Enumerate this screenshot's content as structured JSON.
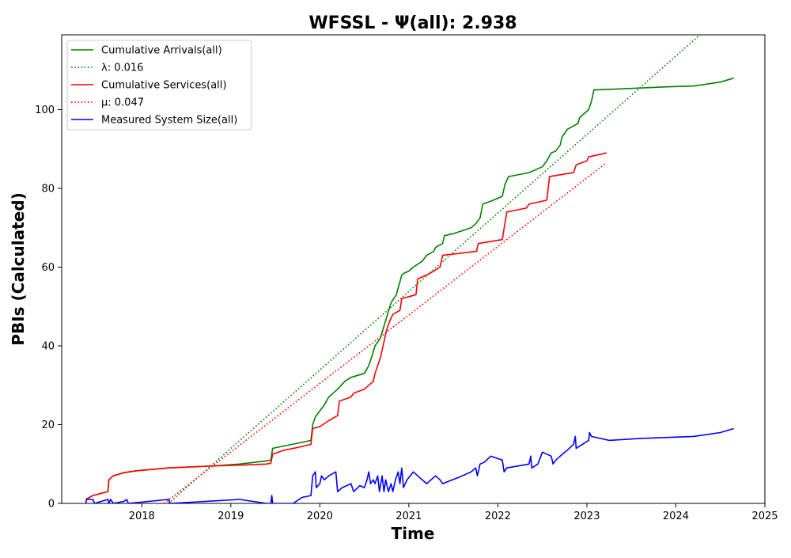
{
  "chart_data": {
    "type": "line",
    "title": "WFSSL -  Ψ(all): 2.938",
    "xlabel": "Time",
    "ylabel": "PBIs (Calculated)",
    "xlim": [
      2017.1,
      2025.0
    ],
    "ylim": [
      0,
      119
    ],
    "xticks": [
      2018,
      2019,
      2020,
      2021,
      2022,
      2023,
      2024,
      2025
    ],
    "yticks": [
      0,
      20,
      40,
      60,
      80,
      100
    ],
    "legend_position": "upper-left",
    "series": [
      {
        "name": "Cumulative Arrivals(all)",
        "color": "#008000",
        "style": "solid",
        "points": [
          [
            2017.37,
            1
          ],
          [
            2017.45,
            2
          ],
          [
            2017.62,
            3
          ],
          [
            2017.63,
            6
          ],
          [
            2017.68,
            7
          ],
          [
            2017.8,
            7.8
          ],
          [
            2017.95,
            8.3
          ],
          [
            2018.3,
            9
          ],
          [
            2018.8,
            9.5
          ],
          [
            2019.1,
            10
          ],
          [
            2019.4,
            10.8
          ],
          [
            2019.45,
            11
          ],
          [
            2019.47,
            14
          ],
          [
            2019.8,
            15.5
          ],
          [
            2019.9,
            16
          ],
          [
            2019.92,
            20
          ],
          [
            2019.95,
            22
          ],
          [
            2020.0,
            23.5
          ],
          [
            2020.05,
            25
          ],
          [
            2020.1,
            27
          ],
          [
            2020.2,
            29
          ],
          [
            2020.28,
            31
          ],
          [
            2020.35,
            32
          ],
          [
            2020.5,
            33
          ],
          [
            2020.55,
            35
          ],
          [
            2020.58,
            37
          ],
          [
            2020.62,
            40
          ],
          [
            2020.68,
            42
          ],
          [
            2020.72,
            45
          ],
          [
            2020.76,
            48
          ],
          [
            2020.8,
            51
          ],
          [
            2020.86,
            53
          ],
          [
            2020.92,
            58
          ],
          [
            2020.95,
            58.5
          ],
          [
            2021.0,
            59
          ],
          [
            2021.05,
            60
          ],
          [
            2021.15,
            61.5
          ],
          [
            2021.2,
            63
          ],
          [
            2021.28,
            64
          ],
          [
            2021.3,
            65
          ],
          [
            2021.38,
            66
          ],
          [
            2021.4,
            68
          ],
          [
            2021.5,
            68.5
          ],
          [
            2021.7,
            70
          ],
          [
            2021.75,
            71
          ],
          [
            2021.8,
            72.5
          ],
          [
            2021.83,
            76
          ],
          [
            2021.95,
            77
          ],
          [
            2022.05,
            78
          ],
          [
            2022.08,
            81
          ],
          [
            2022.12,
            83
          ],
          [
            2022.35,
            84
          ],
          [
            2022.5,
            85.5
          ],
          [
            2022.55,
            87
          ],
          [
            2022.6,
            89
          ],
          [
            2022.65,
            89.5
          ],
          [
            2022.7,
            91
          ],
          [
            2022.72,
            93
          ],
          [
            2022.78,
            95
          ],
          [
            2022.9,
            96.5
          ],
          [
            2022.92,
            98
          ],
          [
            2023.02,
            100
          ],
          [
            2023.05,
            102
          ],
          [
            2023.08,
            105
          ],
          [
            2023.3,
            105.2
          ],
          [
            2023.6,
            105.5
          ],
          [
            2023.9,
            105.8
          ],
          [
            2024.2,
            106
          ],
          [
            2024.5,
            107
          ],
          [
            2024.65,
            108
          ]
        ]
      },
      {
        "name": "λ: 0.016",
        "color": "#008000",
        "style": "dotted",
        "points": [
          [
            2018.3,
            0
          ],
          [
            2024.27,
            119
          ]
        ]
      },
      {
        "name": "Cumulative Services(all)",
        "color": "#ff0000",
        "style": "solid",
        "points": [
          [
            2017.37,
            1
          ],
          [
            2017.45,
            2
          ],
          [
            2017.62,
            3
          ],
          [
            2017.63,
            6
          ],
          [
            2017.68,
            7
          ],
          [
            2017.8,
            7.8
          ],
          [
            2017.95,
            8.3
          ],
          [
            2018.3,
            9
          ],
          [
            2018.8,
            9.5
          ],
          [
            2019.1,
            9.7
          ],
          [
            2019.4,
            10
          ],
          [
            2019.45,
            10.2
          ],
          [
            2019.47,
            12.5
          ],
          [
            2019.6,
            13.5
          ],
          [
            2019.75,
            14.2
          ],
          [
            2019.9,
            15
          ],
          [
            2019.92,
            19
          ],
          [
            2020.0,
            19.5
          ],
          [
            2020.1,
            21
          ],
          [
            2020.2,
            22.3
          ],
          [
            2020.22,
            26
          ],
          [
            2020.35,
            27
          ],
          [
            2020.38,
            28
          ],
          [
            2020.5,
            29
          ],
          [
            2020.55,
            30
          ],
          [
            2020.6,
            31
          ],
          [
            2020.62,
            33
          ],
          [
            2020.65,
            35
          ],
          [
            2020.68,
            37
          ],
          [
            2020.72,
            41
          ],
          [
            2020.75,
            44
          ],
          [
            2020.78,
            46
          ],
          [
            2020.82,
            48
          ],
          [
            2020.9,
            49
          ],
          [
            2020.92,
            52
          ],
          [
            2021.08,
            53
          ],
          [
            2021.1,
            57
          ],
          [
            2021.2,
            58
          ],
          [
            2021.28,
            59
          ],
          [
            2021.35,
            60
          ],
          [
            2021.38,
            63
          ],
          [
            2021.76,
            64
          ],
          [
            2021.78,
            66
          ],
          [
            2022.05,
            67
          ],
          [
            2022.1,
            74
          ],
          [
            2022.32,
            75
          ],
          [
            2022.35,
            76
          ],
          [
            2022.55,
            77
          ],
          [
            2022.58,
            83
          ],
          [
            2022.85,
            84
          ],
          [
            2022.88,
            86
          ],
          [
            2023.0,
            87
          ],
          [
            2023.02,
            88
          ],
          [
            2023.22,
            89
          ]
        ]
      },
      {
        "name": "μ: 0.047",
        "color": "#ff0000",
        "style": "dotted",
        "points": [
          [
            2018.25,
            0
          ],
          [
            2023.22,
            86.5
          ]
        ]
      },
      {
        "name": "Measured System Size(all)",
        "color": "#0000ff",
        "style": "solid",
        "points": [
          [
            2017.37,
            0
          ],
          [
            2017.38,
            1
          ],
          [
            2017.45,
            1
          ],
          [
            2017.47,
            0
          ],
          [
            2017.62,
            1
          ],
          [
            2017.63,
            0
          ],
          [
            2017.65,
            1
          ],
          [
            2017.68,
            0
          ],
          [
            2017.8,
            0.5
          ],
          [
            2017.83,
            1
          ],
          [
            2017.85,
            0
          ],
          [
            2018.3,
            1
          ],
          [
            2018.32,
            0
          ],
          [
            2019.1,
            1
          ],
          [
            2019.4,
            0
          ],
          [
            2019.45,
            0
          ],
          [
            2019.46,
            2
          ],
          [
            2019.47,
            0
          ],
          [
            2019.7,
            0
          ],
          [
            2019.8,
            1.5
          ],
          [
            2019.9,
            2
          ],
          [
            2019.92,
            7
          ],
          [
            2019.95,
            8
          ],
          [
            2019.96,
            4
          ],
          [
            2020.0,
            5
          ],
          [
            2020.02,
            7
          ],
          [
            2020.05,
            6
          ],
          [
            2020.1,
            7
          ],
          [
            2020.18,
            8
          ],
          [
            2020.2,
            3
          ],
          [
            2020.25,
            4
          ],
          [
            2020.35,
            5
          ],
          [
            2020.38,
            3
          ],
          [
            2020.45,
            4.5
          ],
          [
            2020.5,
            4
          ],
          [
            2020.53,
            6
          ],
          [
            2020.55,
            8
          ],
          [
            2020.57,
            5
          ],
          [
            2020.6,
            6
          ],
          [
            2020.62,
            5
          ],
          [
            2020.65,
            7
          ],
          [
            2020.67,
            3
          ],
          [
            2020.7,
            7
          ],
          [
            2020.72,
            3
          ],
          [
            2020.74,
            6
          ],
          [
            2020.77,
            3
          ],
          [
            2020.8,
            5
          ],
          [
            2020.82,
            3
          ],
          [
            2020.85,
            6
          ],
          [
            2020.88,
            8
          ],
          [
            2020.9,
            5
          ],
          [
            2020.92,
            9
          ],
          [
            2020.94,
            4
          ],
          [
            2020.98,
            6
          ],
          [
            2021.05,
            8
          ],
          [
            2021.1,
            7
          ],
          [
            2021.2,
            5
          ],
          [
            2021.25,
            6
          ],
          [
            2021.3,
            7
          ],
          [
            2021.35,
            6
          ],
          [
            2021.38,
            5
          ],
          [
            2021.6,
            7
          ],
          [
            2021.7,
            8
          ],
          [
            2021.75,
            9
          ],
          [
            2021.77,
            7
          ],
          [
            2021.8,
            10
          ],
          [
            2021.85,
            10.5
          ],
          [
            2021.92,
            12
          ],
          [
            2022.05,
            11
          ],
          [
            2022.07,
            8
          ],
          [
            2022.1,
            9
          ],
          [
            2022.35,
            10
          ],
          [
            2022.37,
            12
          ],
          [
            2022.38,
            9
          ],
          [
            2022.45,
            10
          ],
          [
            2022.5,
            13
          ],
          [
            2022.6,
            12
          ],
          [
            2022.62,
            10
          ],
          [
            2022.65,
            11
          ],
          [
            2022.7,
            12
          ],
          [
            2022.78,
            13.5
          ],
          [
            2022.85,
            15
          ],
          [
            2022.87,
            17
          ],
          [
            2022.88,
            14
          ],
          [
            2022.95,
            15
          ],
          [
            2023.02,
            16
          ],
          [
            2023.03,
            18
          ],
          [
            2023.05,
            17
          ],
          [
            2023.25,
            16
          ],
          [
            2023.6,
            16.5
          ],
          [
            2024.2,
            17
          ],
          [
            2024.5,
            18
          ],
          [
            2024.65,
            19
          ]
        ]
      }
    ]
  }
}
